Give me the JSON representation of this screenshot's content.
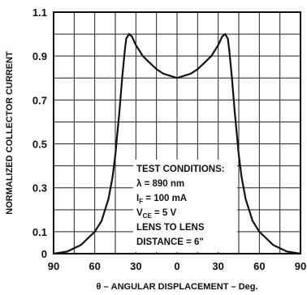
{
  "chart_data": {
    "type": "line",
    "title": "",
    "xlabel": "θ – ANGULAR DISPLACEMENT – Deg.",
    "ylabel": "NORMALIZED COLLECTOR CURRENT",
    "xlim": [
      -90,
      90
    ],
    "ylim": [
      0,
      1.1
    ],
    "grid": true,
    "x_tick_labels": [
      "90",
      "60",
      "30",
      "0",
      "30",
      "60",
      "90"
    ],
    "x_tick_values": [
      -90,
      -60,
      -30,
      0,
      30,
      60,
      90
    ],
    "y_tick_labels": [
      "1.1",
      "0.9",
      "0.7",
      "0.5",
      "0.3",
      "0.1",
      "0"
    ],
    "y_tick_values": [
      1.1,
      0.9,
      0.7,
      0.5,
      0.3,
      0.1,
      0
    ],
    "series": [
      {
        "x": [
          -90,
          -80,
          -70,
          -65,
          -60,
          -55,
          -50,
          -47,
          -45,
          -42,
          -40,
          -38,
          -37,
          -35,
          -33,
          -30,
          -25,
          -20,
          -15,
          -10,
          -5,
          0,
          5,
          10,
          15,
          20,
          25,
          30,
          33,
          35,
          37,
          38,
          40,
          42,
          45,
          47,
          50,
          55,
          60,
          65,
          70,
          80,
          90
        ],
        "values": [
          0.0,
          0.01,
          0.04,
          0.07,
          0.1,
          0.15,
          0.25,
          0.35,
          0.45,
          0.65,
          0.8,
          0.93,
          0.98,
          1.0,
          0.99,
          0.95,
          0.9,
          0.87,
          0.84,
          0.82,
          0.81,
          0.8,
          0.81,
          0.82,
          0.84,
          0.87,
          0.9,
          0.95,
          0.99,
          1.0,
          0.98,
          0.93,
          0.8,
          0.65,
          0.45,
          0.35,
          0.25,
          0.15,
          0.1,
          0.07,
          0.04,
          0.01,
          0.0
        ]
      }
    ],
    "annotation": {
      "lines": [
        "TEST CONDITIONS:",
        "λ = 890 nm",
        "I",
        "F",
        " = 100 mA",
        "V",
        "CE",
        " = 5 V",
        "LENS TO LENS",
        "DISTANCE = 6\""
      ]
    }
  }
}
